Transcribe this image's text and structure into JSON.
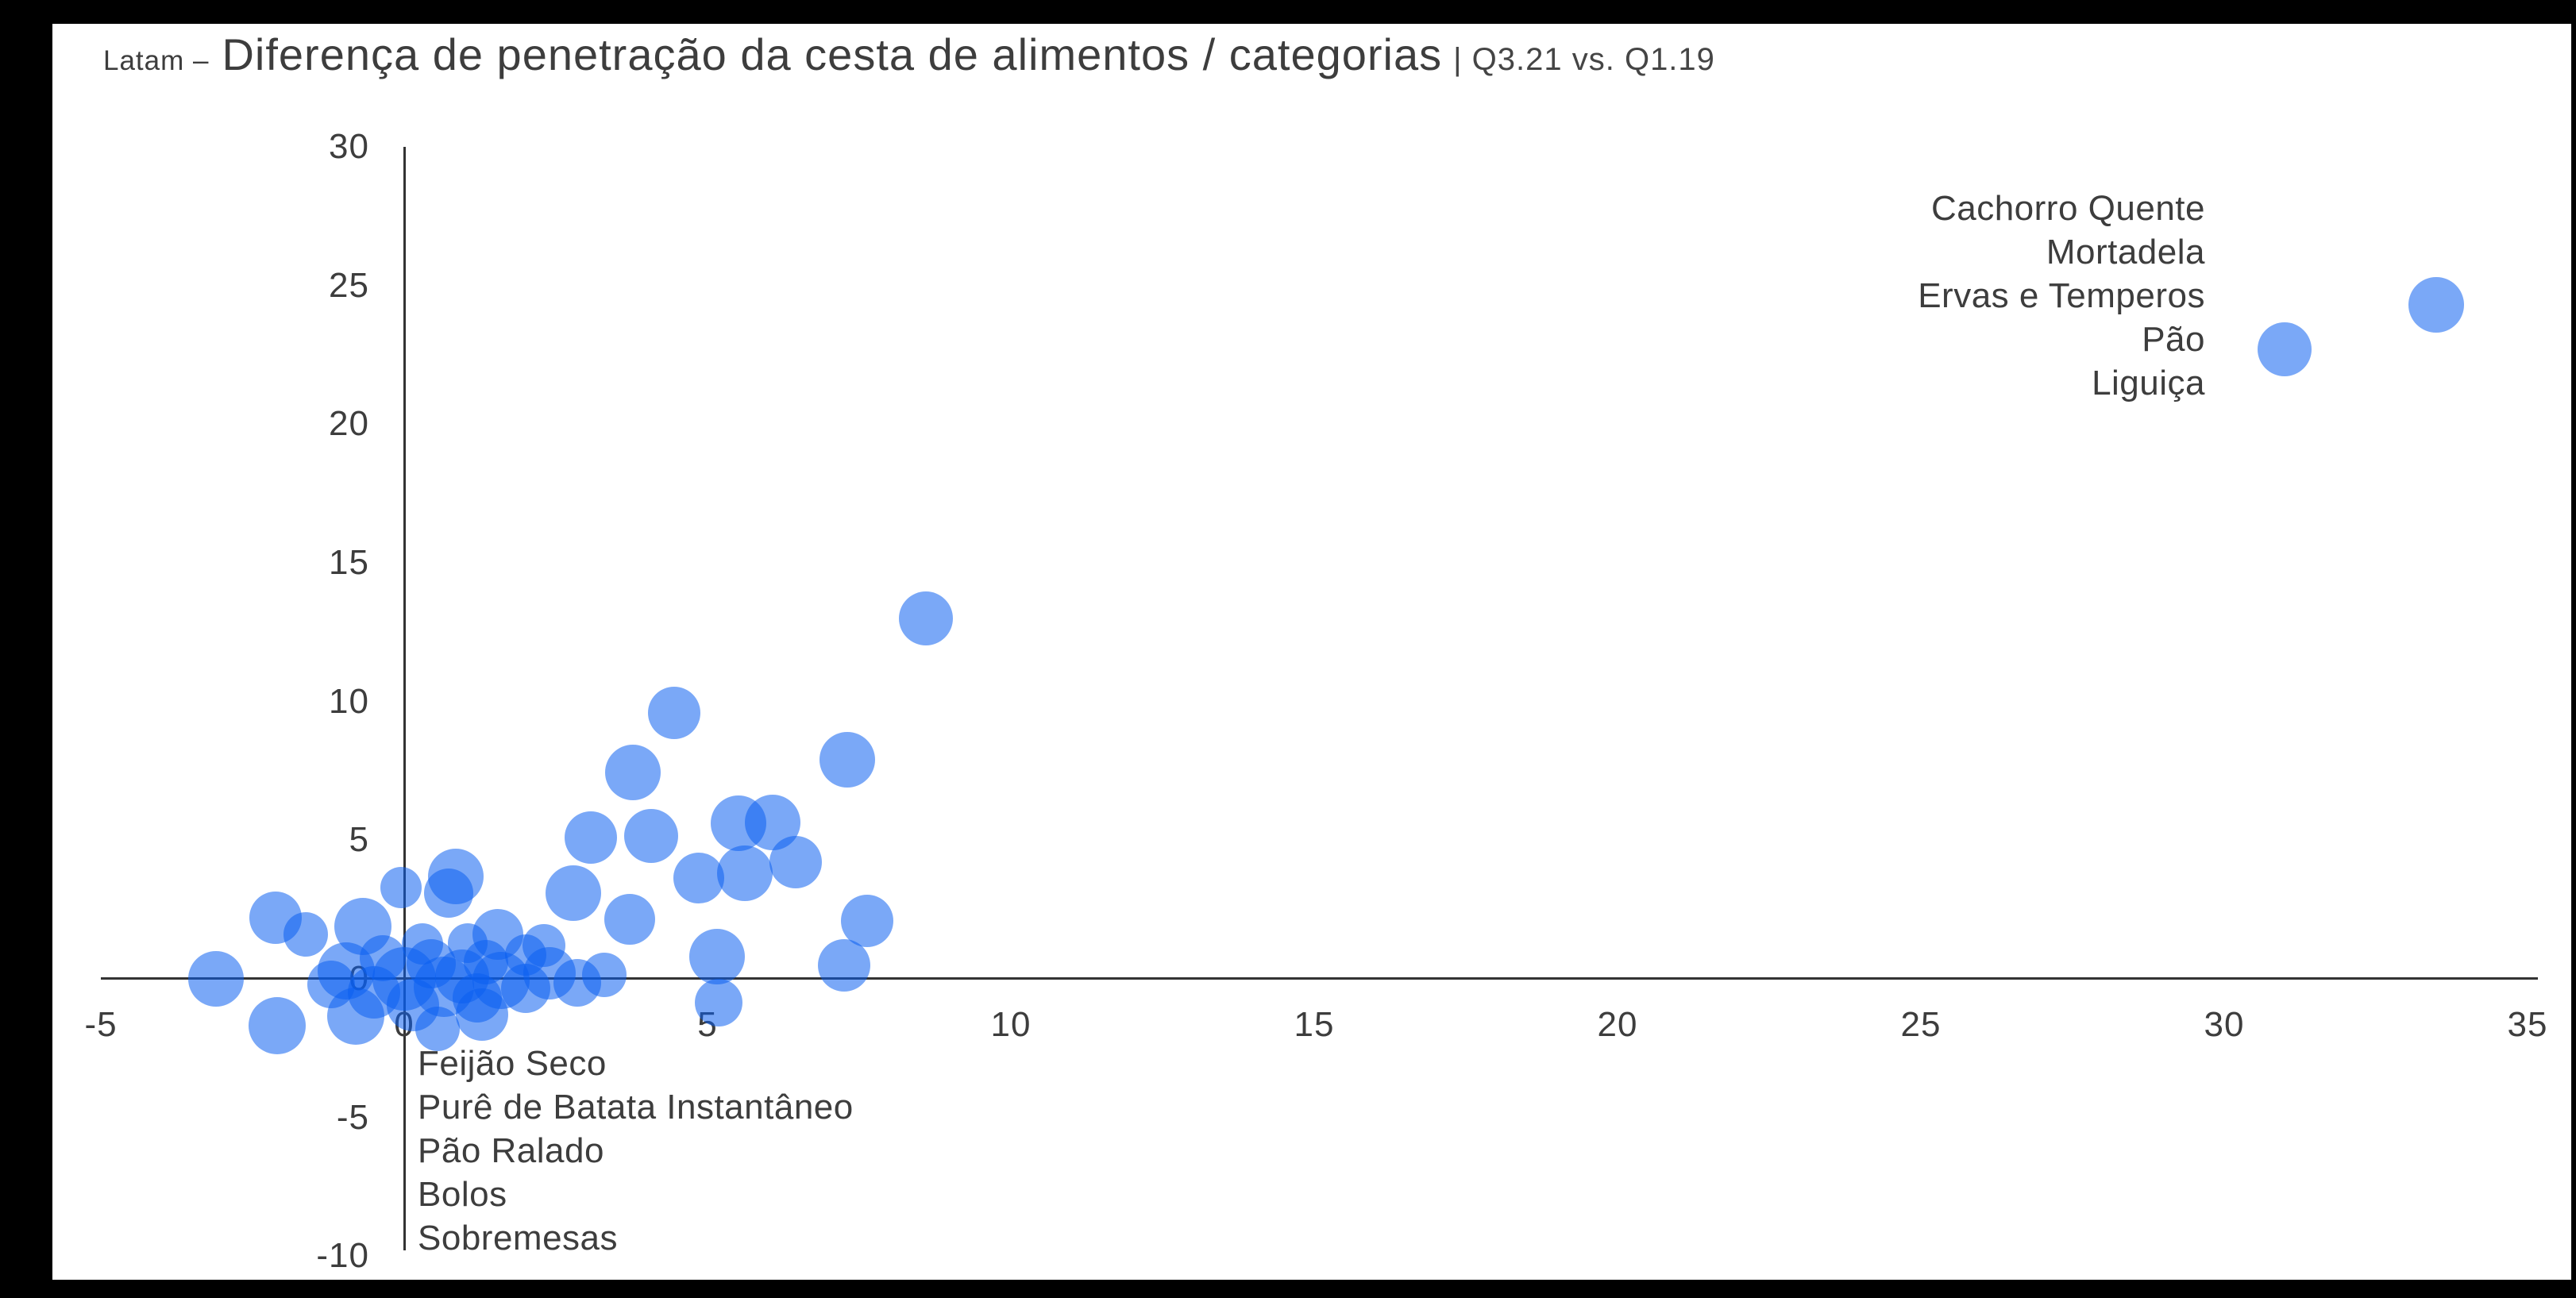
{
  "title": {
    "prefix": "Latam –",
    "main": "Diferença de penetração da cesta de alimentos / categorias",
    "suffix": "| Q3.21 vs. Q1.19"
  },
  "colors": {
    "bubble_fill": "#0A5FF0",
    "bubble_opacity": 0.54,
    "axis_line": "#333333",
    "text": "#3d3d3d",
    "plot_background": "#ffffff",
    "frame_background": "#000000"
  },
  "chart_data": {
    "type": "scatter",
    "title": "Latam – Diferença de penetração da cesta de alimentos / categorias | Q3.21 vs. Q1.19",
    "xlabel": "",
    "ylabel": "",
    "xlim": [
      -5,
      35
    ],
    "ylim": [
      -10,
      30
    ],
    "x_ticks": [
      -5,
      0,
      5,
      10,
      15,
      20,
      25,
      30,
      35
    ],
    "y_ticks": [
      30,
      25,
      20,
      15,
      10,
      5,
      0,
      -5,
      -10
    ],
    "grid": false,
    "legend": false,
    "annotations": {
      "top_right": {
        "lines": [
          "Cachorro Quente",
          "Mortadela",
          "Ervas e Temperos",
          "Pão",
          "Liguiça"
        ]
      },
      "bottom_left": {
        "lines": [
          "Feijão Seco",
          "Purê de Batata Instantâneo",
          "Pão Ralado",
          "Bolos",
          "Sobremesas"
        ]
      }
    },
    "points": [
      {
        "x": -3.1,
        "y": 0.0,
        "r": 35
      },
      {
        "x": -2.1,
        "y": -1.7,
        "r": 36
      },
      {
        "x": -2.12,
        "y": 2.2,
        "r": 33
      },
      {
        "x": -1.62,
        "y": 1.6,
        "r": 28
      },
      {
        "x": -0.68,
        "y": 1.9,
        "r": 36
      },
      {
        "x": -0.05,
        "y": 3.3,
        "r": 26
      },
      {
        "x": 0.85,
        "y": 3.7,
        "r": 35
      },
      {
        "x": 0.73,
        "y": 3.1,
        "r": 31
      },
      {
        "x": 1.54,
        "y": 1.6,
        "r": 32
      },
      {
        "x": 2.3,
        "y": 1.2,
        "r": 27
      },
      {
        "x": 2.79,
        "y": 3.1,
        "r": 35
      },
      {
        "x": 3.08,
        "y": 5.1,
        "r": 33
      },
      {
        "x": 3.77,
        "y": 7.45,
        "r": 35
      },
      {
        "x": 4.07,
        "y": 5.15,
        "r": 34
      },
      {
        "x": 3.72,
        "y": 2.15,
        "r": 32
      },
      {
        "x": 4.45,
        "y": 9.6,
        "r": 33
      },
      {
        "x": 5.51,
        "y": 5.6,
        "r": 35
      },
      {
        "x": 6.07,
        "y": 5.65,
        "r": 35
      },
      {
        "x": 4.86,
        "y": 3.65,
        "r": 32
      },
      {
        "x": 5.62,
        "y": 3.8,
        "r": 35
      },
      {
        "x": 6.45,
        "y": 4.2,
        "r": 33
      },
      {
        "x": 7.3,
        "y": 7.9,
        "r": 35
      },
      {
        "x": 7.63,
        "y": 2.1,
        "r": 33
      },
      {
        "x": 5.16,
        "y": 0.8,
        "r": 35
      },
      {
        "x": 5.18,
        "y": -0.85,
        "r": 30
      },
      {
        "x": 7.25,
        "y": 0.5,
        "r": 33
      },
      {
        "x": 8.6,
        "y": 13.0,
        "r": 34
      },
      {
        "x": 31.0,
        "y": 22.7,
        "r": 34
      },
      {
        "x": 33.5,
        "y": 24.3,
        "r": 35
      },
      {
        "x": -1.2,
        "y": -0.2,
        "r": 30
      },
      {
        "x": -0.95,
        "y": 0.3,
        "r": 36
      },
      {
        "x": -0.8,
        "y": -1.35,
        "r": 36
      },
      {
        "x": -0.5,
        "y": -0.5,
        "r": 33
      },
      {
        "x": -0.35,
        "y": 0.75,
        "r": 29
      },
      {
        "x": 0.0,
        "y": 0.0,
        "r": 40
      },
      {
        "x": 0.15,
        "y": -0.95,
        "r": 33
      },
      {
        "x": 0.3,
        "y": 1.25,
        "r": 26
      },
      {
        "x": 0.45,
        "y": 0.55,
        "r": 31
      },
      {
        "x": 0.55,
        "y": -1.8,
        "r": 28
      },
      {
        "x": 0.65,
        "y": -0.3,
        "r": 38
      },
      {
        "x": 0.95,
        "y": 0.1,
        "r": 34
      },
      {
        "x": 1.05,
        "y": 1.3,
        "r": 25
      },
      {
        "x": 1.2,
        "y": -0.7,
        "r": 31
      },
      {
        "x": 1.28,
        "y": -1.3,
        "r": 33
      },
      {
        "x": 1.35,
        "y": 0.6,
        "r": 28
      },
      {
        "x": 1.6,
        "y": -0.05,
        "r": 36
      },
      {
        "x": 2.0,
        "y": -0.35,
        "r": 31
      },
      {
        "x": 2.0,
        "y": 0.85,
        "r": 26
      },
      {
        "x": 2.4,
        "y": 0.2,
        "r": 33
      },
      {
        "x": 2.85,
        "y": -0.15,
        "r": 30
      },
      {
        "x": 3.3,
        "y": 0.15,
        "r": 28
      }
    ]
  }
}
